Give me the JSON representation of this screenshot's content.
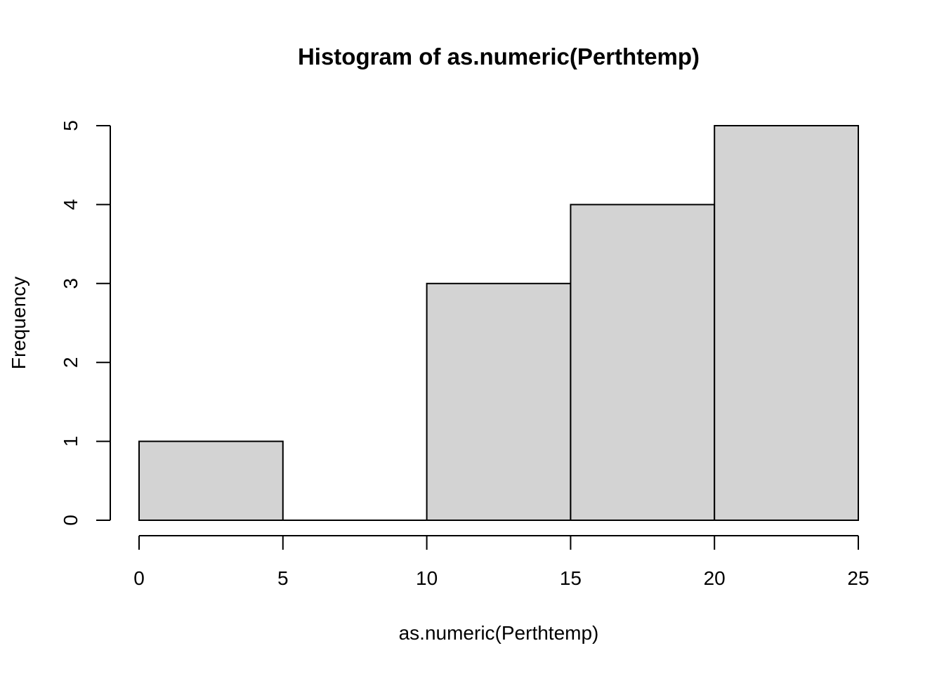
{
  "chart_data": {
    "type": "bar",
    "subtype": "histogram",
    "title": "Histogram of as.numeric(Perthtemp)",
    "xlabel": "as.numeric(Perthtemp)",
    "ylabel": "Frequency",
    "bins": [
      {
        "from": 0,
        "to": 5,
        "count": 1
      },
      {
        "from": 5,
        "to": 10,
        "count": 0
      },
      {
        "from": 10,
        "to": 15,
        "count": 3
      },
      {
        "from": 15,
        "to": 20,
        "count": 4
      },
      {
        "from": 20,
        "to": 25,
        "count": 5
      }
    ],
    "xlim": [
      0,
      25
    ],
    "ylim": [
      0,
      5
    ],
    "x_ticks": [
      "0",
      "5",
      "10",
      "15",
      "20",
      "25"
    ],
    "y_ticks": [
      "0",
      "1",
      "2",
      "3",
      "4",
      "5"
    ],
    "bar_color": "#d3d3d3",
    "grid": false,
    "legend": "none"
  }
}
